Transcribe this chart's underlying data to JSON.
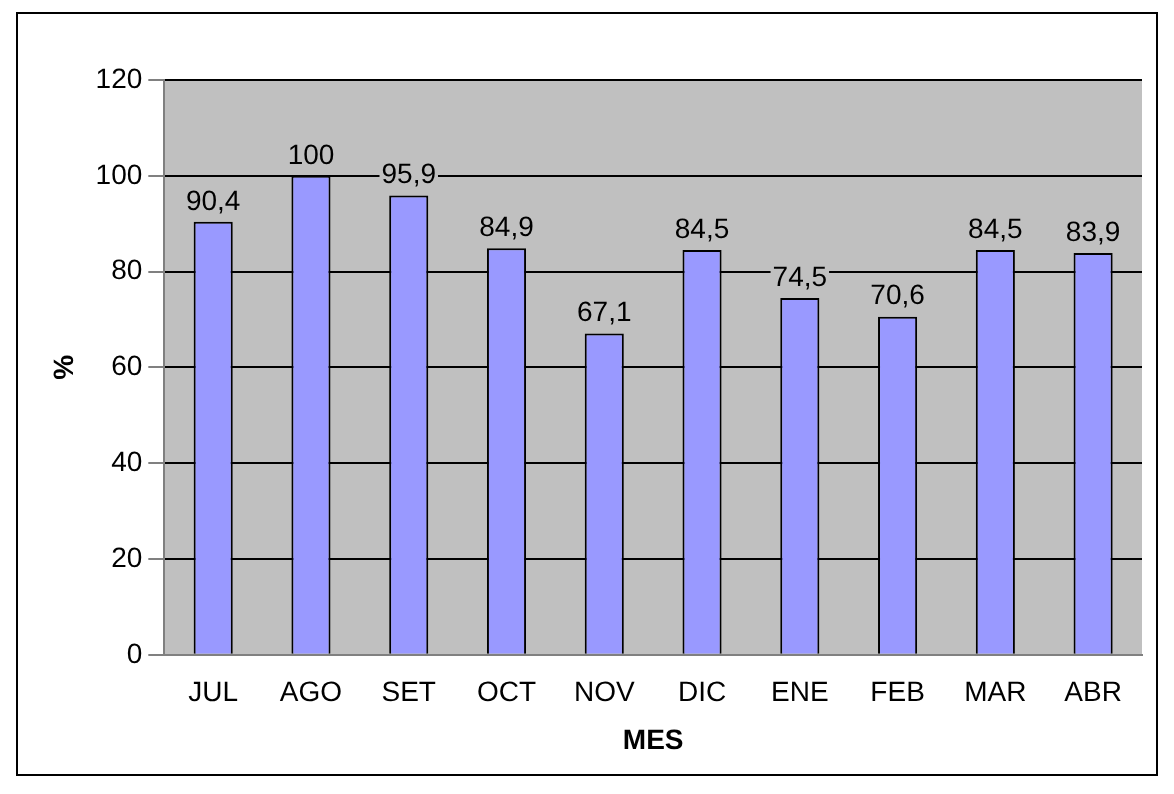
{
  "chart_data": {
    "type": "bar",
    "xlabel": "MES",
    "ylabel": "%",
    "categories": [
      "JUL",
      "AGO",
      "SET",
      "OCT",
      "NOV",
      "DIC",
      "ENE",
      "FEB",
      "MAR",
      "ABR"
    ],
    "values": [
      90.4,
      100,
      95.9,
      84.9,
      67.1,
      84.5,
      74.5,
      70.6,
      84.5,
      83.9
    ],
    "value_labels": [
      "90,4",
      "100",
      "95,9",
      "84,9",
      "67,1",
      "84,5",
      "74,5",
      "70,6",
      "84,5",
      "83,9"
    ],
    "color": "#9999ff",
    "ylim": [
      0,
      120
    ],
    "yticks": [
      0,
      20,
      40,
      60,
      80,
      100,
      120
    ],
    "grid": "y",
    "legend": false
  }
}
